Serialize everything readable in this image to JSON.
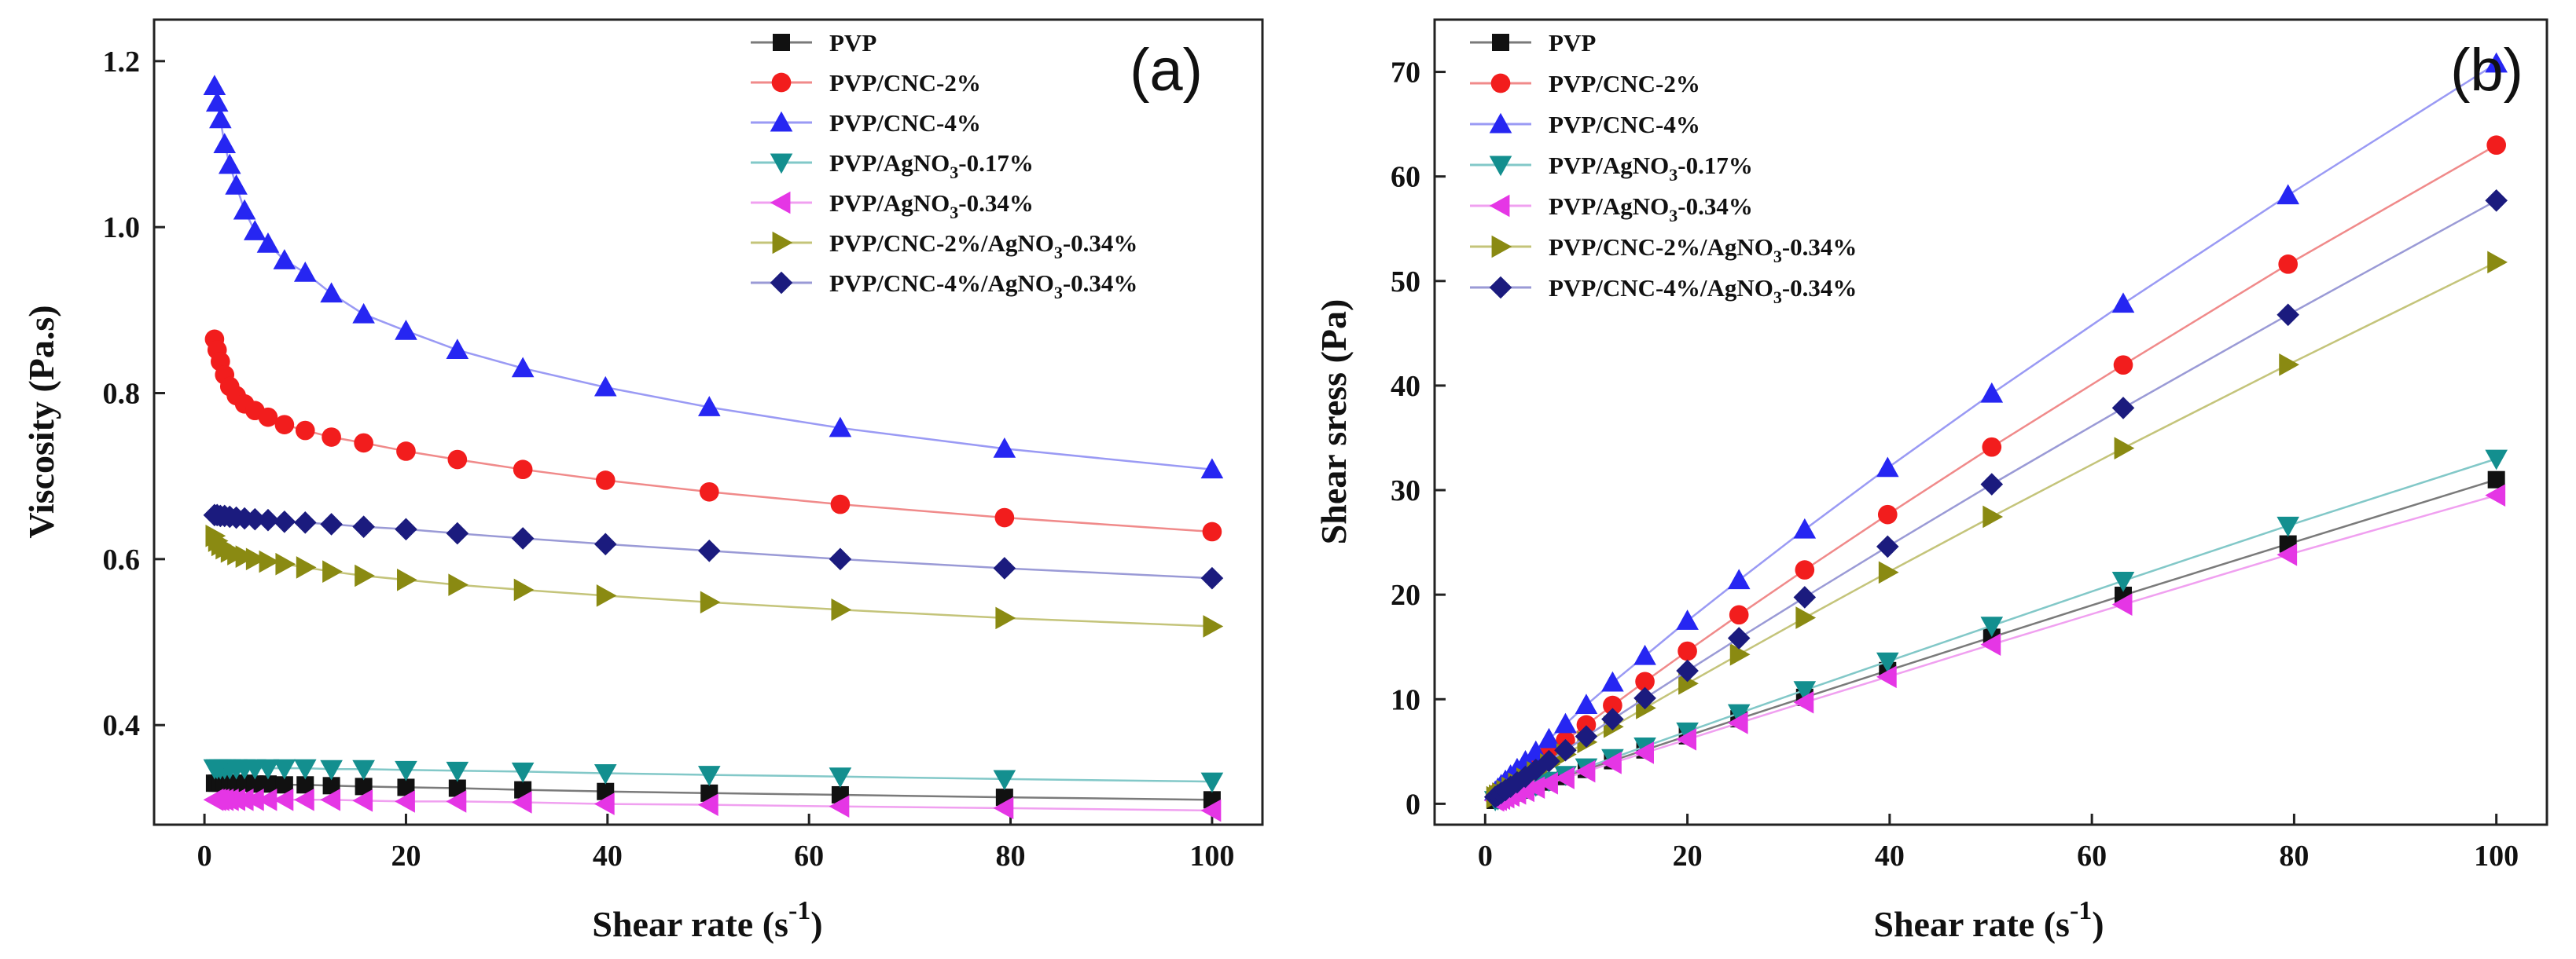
{
  "chart_data": [
    {
      "panel": "(a)",
      "type": "line",
      "title": "",
      "xlabel": "Shear rate (s",
      "xlabel_sup": "-1",
      "xlabel_close": ")",
      "ylabel": "Viscosity (Pa.s)",
      "xlim": [
        -5,
        105
      ],
      "ylim": [
        0.28,
        1.25
      ],
      "xticks": [
        "0",
        "20",
        "40",
        "60",
        "80",
        "100"
      ],
      "xtick_values": [
        0,
        20,
        40,
        60,
        80,
        100
      ],
      "yticks": [
        "0.4",
        "0.6",
        "0.8",
        "1.0",
        "1.2"
      ],
      "ytick_values": [
        0.4,
        0.6,
        0.8,
        1.0,
        1.2
      ],
      "legend_position": "top-right",
      "x": [
        1,
        1.26,
        1.58,
        2,
        2.51,
        3.16,
        3.98,
        5.01,
        6.31,
        7.94,
        10,
        12.6,
        15.8,
        20,
        25.1,
        31.6,
        39.8,
        50.1,
        63.1,
        79.4,
        100
      ],
      "series": [
        {
          "name": "PVP",
          "values": [
            0.33,
            0.33,
            0.33,
            0.33,
            0.33,
            0.33,
            0.33,
            0.329,
            0.329,
            0.328,
            0.328,
            0.327,
            0.326,
            0.325,
            0.324,
            0.322,
            0.32,
            0.318,
            0.316,
            0.313,
            0.31
          ]
        },
        {
          "name": "PVP/CNC-2%",
          "values": [
            0.865,
            0.852,
            0.838,
            0.822,
            0.808,
            0.797,
            0.787,
            0.779,
            0.771,
            0.762,
            0.755,
            0.747,
            0.74,
            0.73,
            0.72,
            0.708,
            0.695,
            0.681,
            0.666,
            0.65,
            0.633
          ]
        },
        {
          "name": "PVP/CNC-4%",
          "values": [
            1.17,
            1.15,
            1.13,
            1.1,
            1.075,
            1.05,
            1.02,
            0.995,
            0.98,
            0.96,
            0.945,
            0.92,
            0.895,
            0.875,
            0.852,
            0.83,
            0.807,
            0.783,
            0.758,
            0.733,
            0.708
          ]
        },
        {
          "name": "PVP/AgNO3-0.17%",
          "values": [
            0.348,
            0.348,
            0.348,
            0.348,
            0.348,
            0.348,
            0.348,
            0.348,
            0.348,
            0.348,
            0.348,
            0.347,
            0.347,
            0.346,
            0.345,
            0.344,
            0.342,
            0.34,
            0.338,
            0.335,
            0.332
          ]
        },
        {
          "name": "PVP/AgNO3-0.34%",
          "values": [
            0.31,
            0.31,
            0.31,
            0.31,
            0.31,
            0.31,
            0.31,
            0.31,
            0.31,
            0.31,
            0.31,
            0.31,
            0.309,
            0.308,
            0.308,
            0.307,
            0.305,
            0.304,
            0.302,
            0.3,
            0.297
          ]
        },
        {
          "name": "PVP/CNC-2%/AgNO3-0.34%",
          "values": [
            0.628,
            0.622,
            0.617,
            0.613,
            0.609,
            0.606,
            0.603,
            0.6,
            0.597,
            0.594,
            0.59,
            0.585,
            0.58,
            0.575,
            0.569,
            0.563,
            0.556,
            0.548,
            0.539,
            0.529,
            0.519
          ]
        },
        {
          "name": "PVP/CNC-4%/AgNO3-0.34%",
          "values": [
            0.653,
            0.653,
            0.652,
            0.652,
            0.651,
            0.65,
            0.649,
            0.648,
            0.647,
            0.645,
            0.644,
            0.642,
            0.639,
            0.636,
            0.631,
            0.625,
            0.618,
            0.61,
            0.6,
            0.589,
            0.577
          ]
        }
      ]
    },
    {
      "panel": "(b)",
      "type": "line",
      "title": "",
      "xlabel": "Shear rate (s",
      "xlabel_sup": "-1",
      "xlabel_close": ")",
      "ylabel": "Shear sress (Pa)",
      "xlim": [
        -5,
        105
      ],
      "ylim": [
        -2,
        75
      ],
      "xticks": [
        "0",
        "20",
        "40",
        "60",
        "80",
        "100"
      ],
      "xtick_values": [
        0,
        20,
        40,
        60,
        80,
        100
      ],
      "yticks": [
        "0",
        "10",
        "20",
        "30",
        "40",
        "50",
        "60",
        "70"
      ],
      "ytick_values": [
        0,
        10,
        20,
        30,
        40,
        50,
        60,
        70
      ],
      "legend_position": "top-left",
      "x": [
        1,
        1.26,
        1.58,
        2,
        2.51,
        3.16,
        3.98,
        5.01,
        6.31,
        7.94,
        10,
        12.6,
        15.8,
        20,
        25.1,
        31.6,
        39.8,
        50.1,
        63.1,
        79.4,
        100
      ],
      "series": [
        {
          "name": "PVP",
          "values": [
            0.33,
            0.42,
            0.52,
            0.66,
            0.83,
            1.04,
            1.31,
            1.65,
            2.08,
            2.6,
            3.28,
            4.12,
            5.15,
            6.5,
            8.13,
            10.18,
            12.74,
            15.93,
            19.94,
            24.85,
            31.0
          ]
        },
        {
          "name": "PVP/CNC-2%",
          "values": [
            0.87,
            1.07,
            1.32,
            1.64,
            2.03,
            2.52,
            3.13,
            3.9,
            4.87,
            6.05,
            7.55,
            9.41,
            11.69,
            14.6,
            18.07,
            22.37,
            27.66,
            34.12,
            41.97,
            51.61,
            63.0
          ]
        },
        {
          "name": "PVP/CNC-4%",
          "values": [
            1.17,
            1.45,
            1.79,
            2.2,
            2.7,
            3.32,
            4.06,
            4.98,
            6.18,
            7.62,
            9.45,
            11.59,
            14.14,
            17.5,
            21.39,
            26.23,
            32.12,
            39.23,
            47.83,
            58.2,
            70.8
          ]
        },
        {
          "name": "PVP/AgNO3-0.17%",
          "values": [
            0.35,
            0.44,
            0.55,
            0.7,
            0.87,
            1.1,
            1.38,
            1.74,
            2.2,
            2.76,
            3.48,
            4.37,
            5.48,
            6.92,
            8.66,
            10.87,
            13.61,
            17.03,
            21.33,
            26.6,
            33.0
          ]
        },
        {
          "name": "PVP/AgNO3-0.34%",
          "values": [
            0.31,
            0.39,
            0.49,
            0.62,
            0.78,
            0.98,
            1.23,
            1.55,
            1.96,
            2.46,
            3.1,
            3.91,
            4.88,
            6.16,
            7.73,
            9.7,
            12.14,
            15.23,
            19.06,
            23.82,
            29.5
          ]
        },
        {
          "name": "PVP/CNC-2%/AgNO3-0.34%",
          "values": [
            0.63,
            0.78,
            0.97,
            1.23,
            1.53,
            1.92,
            2.4,
            3.01,
            3.77,
            4.72,
            5.9,
            7.37,
            9.16,
            11.5,
            14.28,
            17.79,
            22.13,
            27.45,
            34.01,
            42.0,
            51.8
          ]
        },
        {
          "name": "PVP/CNC-4%/AgNO3-0.34%",
          "values": [
            0.65,
            0.82,
            1.03,
            1.3,
            1.63,
            2.05,
            2.58,
            3.25,
            4.08,
            5.12,
            6.44,
            8.09,
            10.1,
            12.72,
            15.84,
            19.75,
            24.6,
            30.56,
            37.86,
            46.77,
            57.7
          ]
        }
      ]
    }
  ],
  "legend": {
    "colors": [
      "#111111",
      "#f21d1d",
      "#2626f2",
      "#138f8f",
      "#e536e5",
      "#8a8a12",
      "#1b1b7e"
    ],
    "line_colors": [
      "#7a7a7a",
      "#f08a8a",
      "#9a9af4",
      "#82c8c8",
      "#f0a0f0",
      "#c4c47a",
      "#9a9ad6"
    ],
    "markers": [
      "square",
      "circle",
      "triangle-up",
      "triangle-down",
      "triangle-left",
      "triangle-right",
      "diamond"
    ],
    "entries": [
      {
        "base": "PVP",
        "sub": "",
        "tail": ""
      },
      {
        "base": "PVP/CNC-2%",
        "sub": "",
        "tail": ""
      },
      {
        "base": "PVP/CNC-4%",
        "sub": "",
        "tail": ""
      },
      {
        "base": "PVP/AgNO",
        "sub": "3",
        "tail": "-0.17%"
      },
      {
        "base": "PVP/AgNO",
        "sub": "3",
        "tail": "-0.34%"
      },
      {
        "base": "PVP/CNC-2%/AgNO",
        "sub": "3",
        "tail": "-0.34%"
      },
      {
        "base": "PVP/CNC-4%/AgNO",
        "sub": "3",
        "tail": "-0.34%"
      }
    ]
  }
}
